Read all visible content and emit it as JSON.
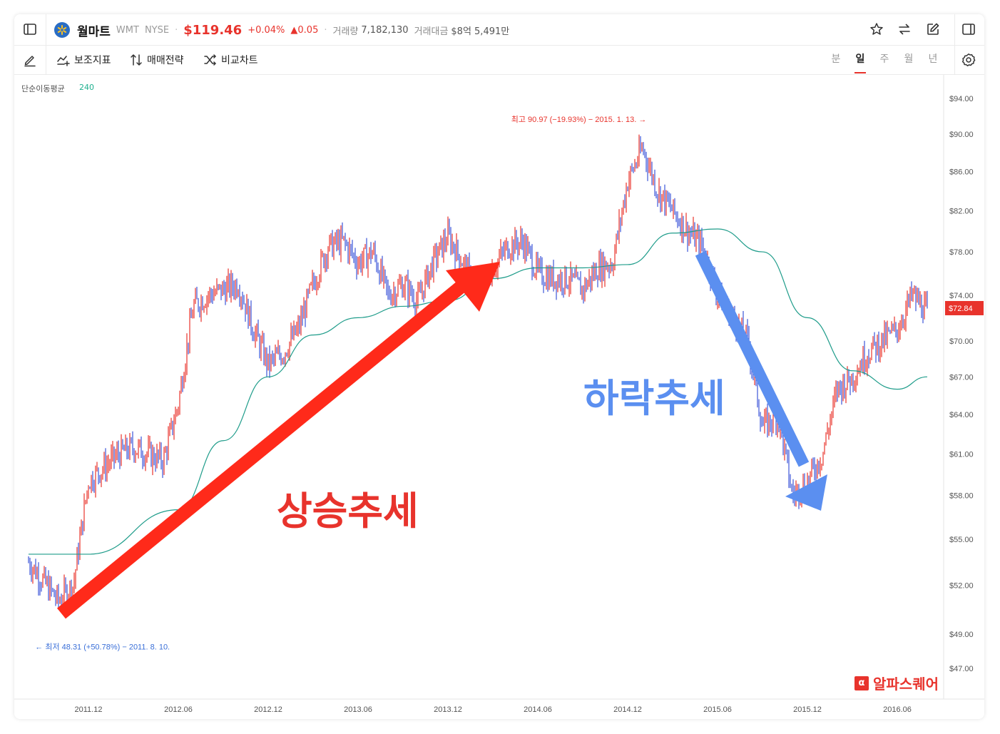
{
  "header": {
    "stock_name": "월마트",
    "ticker": "WMT",
    "exchange": "NYSE",
    "price": "$119.46",
    "change_pct": "+0.04%",
    "change_abs": "▲0.05",
    "volume_label": "거래량",
    "volume_value": "7,182,130",
    "amount_label": "거래대금",
    "amount_value": "$8억 5,491만"
  },
  "toolbar": {
    "indicators_label": "보조지표",
    "strategy_label": "매매전략",
    "compare_label": "비교차트",
    "periods": [
      "분",
      "일",
      "주",
      "월",
      "년"
    ],
    "active_period": "일"
  },
  "indicator": {
    "label": "단순이동평균",
    "value": "240"
  },
  "annotations": {
    "high": "최고 90.97 (−19.93%) − 2015. 1. 13. →",
    "low": "← 최저 48.31 (+50.78%) − 2011. 8. 10.",
    "up_trend": "상승추세",
    "down_trend": "하락추세",
    "current_price_tag": "$72.84"
  },
  "watermark": {
    "icon_text": "α",
    "text": "알파스퀘어"
  },
  "colors": {
    "up": "#e8332c",
    "down": "#3b55d9",
    "ma": "#1e9c8a",
    "up_arrow": "#ff2a1a",
    "down_arrow": "#5b8ff0",
    "down_text": "#5b8ff0",
    "up_text": "#e8332c"
  },
  "chart_data": {
    "type": "line",
    "series": [
      {
        "name": "",
        "x": [
          "2011-08",
          "2011-10",
          "2011-11",
          "2011-12",
          "2012-01",
          "2012-02",
          "2012-03",
          "2012-04",
          "2012-05",
          "2012-06",
          "2012-07",
          "2012-08",
          "2012-09",
          "2012-10",
          "2012-11",
          "2012-12",
          "2013-01",
          "2013-02",
          "2013-03",
          "2013-04",
          "2013-05",
          "2013-06",
          "2013-07",
          "2013-08",
          "2013-09",
          "2013-10",
          "2013-11",
          "2013-12",
          "2014-01",
          "2014-02",
          "2014-03",
          "2014-04",
          "2014-05",
          "2014-06",
          "2014-07",
          "2014-08",
          "2014-09",
          "2014-10",
          "2014-11",
          "2014-12",
          "2015-01",
          "2015-02",
          "2015-03",
          "2015-04",
          "2015-05",
          "2015-06",
          "2015-07",
          "2015-08",
          "2015-09",
          "2015-10",
          "2015-11",
          "2015-12",
          "2016-01",
          "2016-02",
          "2016-03",
          "2016-04",
          "2016-05",
          "2016-06",
          "2016-07",
          "2016-08"
        ],
        "y": [
          53.5,
          51,
          52,
          59,
          60,
          61,
          61.5,
          61,
          60.5,
          64.8,
          73,
          74,
          74.5,
          75,
          71,
          68,
          69,
          71,
          75,
          78.5,
          79,
          77,
          78,
          74,
          75,
          73.5,
          77,
          79.5,
          77,
          74,
          76.5,
          78.5,
          79,
          76,
          75.5,
          75.5,
          74.5,
          76.5,
          77,
          85,
          88.5,
          84,
          82,
          80,
          78.5,
          74,
          72,
          70,
          63,
          64,
          58,
          59,
          61,
          66,
          67,
          69,
          70,
          71,
          74,
          72.5
        ]
      },
      {
        "name": "단순이동평균 240",
        "x": [
          "2011-08",
          "2011-12",
          "2012-06",
          "2012-09",
          "2012-12",
          "2013-03",
          "2013-06",
          "2013-09",
          "2013-12",
          "2014-03",
          "2014-06",
          "2014-09",
          "2014-12",
          "2015-03",
          "2015-06",
          "2015-09",
          "2015-12",
          "2016-03",
          "2016-06",
          "2016-08"
        ],
        "y": [
          54,
          54,
          57,
          62,
          67,
          70.5,
          72,
          73,
          73.5,
          75.5,
          76.5,
          76.5,
          76.8,
          79.8,
          80.2,
          78,
          72,
          67.5,
          66,
          67
        ]
      }
    ],
    "xlabel": "",
    "ylabel": "",
    "x_ticks": [
      "2011.12",
      "2012.06",
      "2012.12",
      "2013.06",
      "2013.12",
      "2014.06",
      "2014.12",
      "2015.06",
      "2015.12",
      "2016.06"
    ],
    "y_ticks": [
      "$94.00",
      "$90.00",
      "$86.00",
      "$82.00",
      "$78.00",
      "$74.00",
      "$70.00",
      "$67.00",
      "$64.00",
      "$61.00",
      "$58.00",
      "$55.00",
      "$52.00",
      "$49.00",
      "$47.00"
    ],
    "y_scale": "log",
    "ylim": [
      46,
      96
    ],
    "high": {
      "date": "2015-01-13",
      "value": 90.97
    },
    "low": {
      "date": "2011-08-10",
      "value": 48.31
    },
    "last": 72.84,
    "grid": false,
    "legend": "none"
  }
}
